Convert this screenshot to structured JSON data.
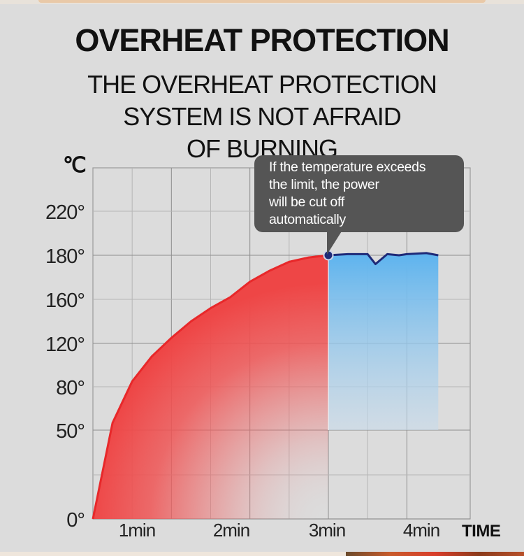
{
  "heading": {
    "title": "OVERHEAT PROTECTION",
    "subtitle_lines": [
      "THE OVERHEAT PROTECTION",
      "SYSTEM IS NOT AFRAID",
      "OF BURNING"
    ]
  },
  "tooltip": {
    "lines": [
      "If the temperature exceeds",
      "the limit, the power",
      "will be cut off",
      "automatically"
    ]
  },
  "colors": {
    "background": "#dcdcdc",
    "heating_curve": "#e8282a",
    "heating_fill": "#f05a5a",
    "holding_line": "#1e2a78",
    "holding_fill": "#6fb8ec",
    "tooltip_bg": "#555555"
  },
  "chart_data": {
    "type": "area",
    "title": "",
    "ylabel": "℃",
    "xlabel": "TIME",
    "y_ticks": [
      {
        "label": "0°",
        "value": 0
      },
      {
        "label": "50°",
        "value": 50
      },
      {
        "label": "80°",
        "value": 80
      },
      {
        "label": "120°",
        "value": 120
      },
      {
        "label": "160°",
        "value": 160
      },
      {
        "label": "180°",
        "value": 180
      },
      {
        "label": "220°",
        "value": 220
      }
    ],
    "x_ticks": [
      {
        "label": "1min",
        "value": 1
      },
      {
        "label": "2min",
        "value": 2
      },
      {
        "label": "3min",
        "value": 3
      },
      {
        "label": "4min",
        "value": 4
      }
    ],
    "xlim": [
      0,
      4.5
    ],
    "grid": true,
    "series": [
      {
        "segment": "heating",
        "x": [
          0,
          0.25,
          0.5,
          0.75,
          1.0,
          1.25,
          1.5,
          1.75,
          2.0,
          2.25,
          2.5,
          2.75,
          3.0
        ],
        "y": [
          0,
          55,
          85,
          108,
          125,
          140,
          152,
          161,
          168,
          173,
          177,
          179,
          180
        ]
      },
      {
        "segment": "holding",
        "x": [
          3.0,
          3.25,
          3.5,
          3.6,
          3.75,
          3.9,
          4.0,
          4.25,
          4.4
        ],
        "y": [
          180,
          181,
          181,
          176,
          181,
          180,
          181,
          182,
          180
        ]
      }
    ],
    "marker": {
      "x": 3.0,
      "y": 180
    }
  }
}
